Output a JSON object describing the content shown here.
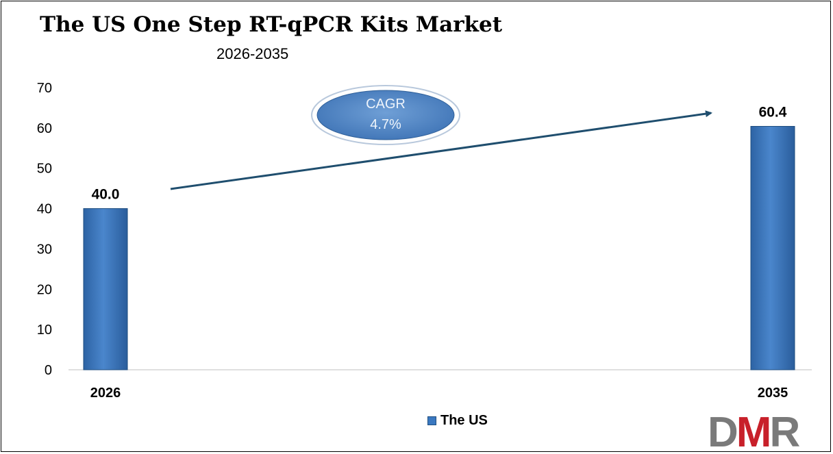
{
  "chart_data": {
    "type": "bar",
    "title": "The US One Step RT-qPCR Kits Market",
    "subtitle": "2026-2035",
    "categories": [
      "2026",
      "2035"
    ],
    "series": [
      {
        "name": "The US",
        "values": [
          40.0,
          60.4
        ],
        "color": "#3a78c0"
      }
    ],
    "data_labels": [
      "40.0",
      "60.4"
    ],
    "yticks": [
      "0",
      "10",
      "20",
      "30",
      "40",
      "50",
      "60",
      "70"
    ],
    "ylim": [
      0,
      70
    ],
    "grid": false,
    "legend_position": "bottom",
    "annotation": {
      "line1": "CAGR",
      "line2": "4.7%"
    }
  },
  "logo": {
    "text": "DMR",
    "color_d": "#7a7a7a",
    "color_m": "#c8202a",
    "color_r": "#7a7a7a"
  }
}
